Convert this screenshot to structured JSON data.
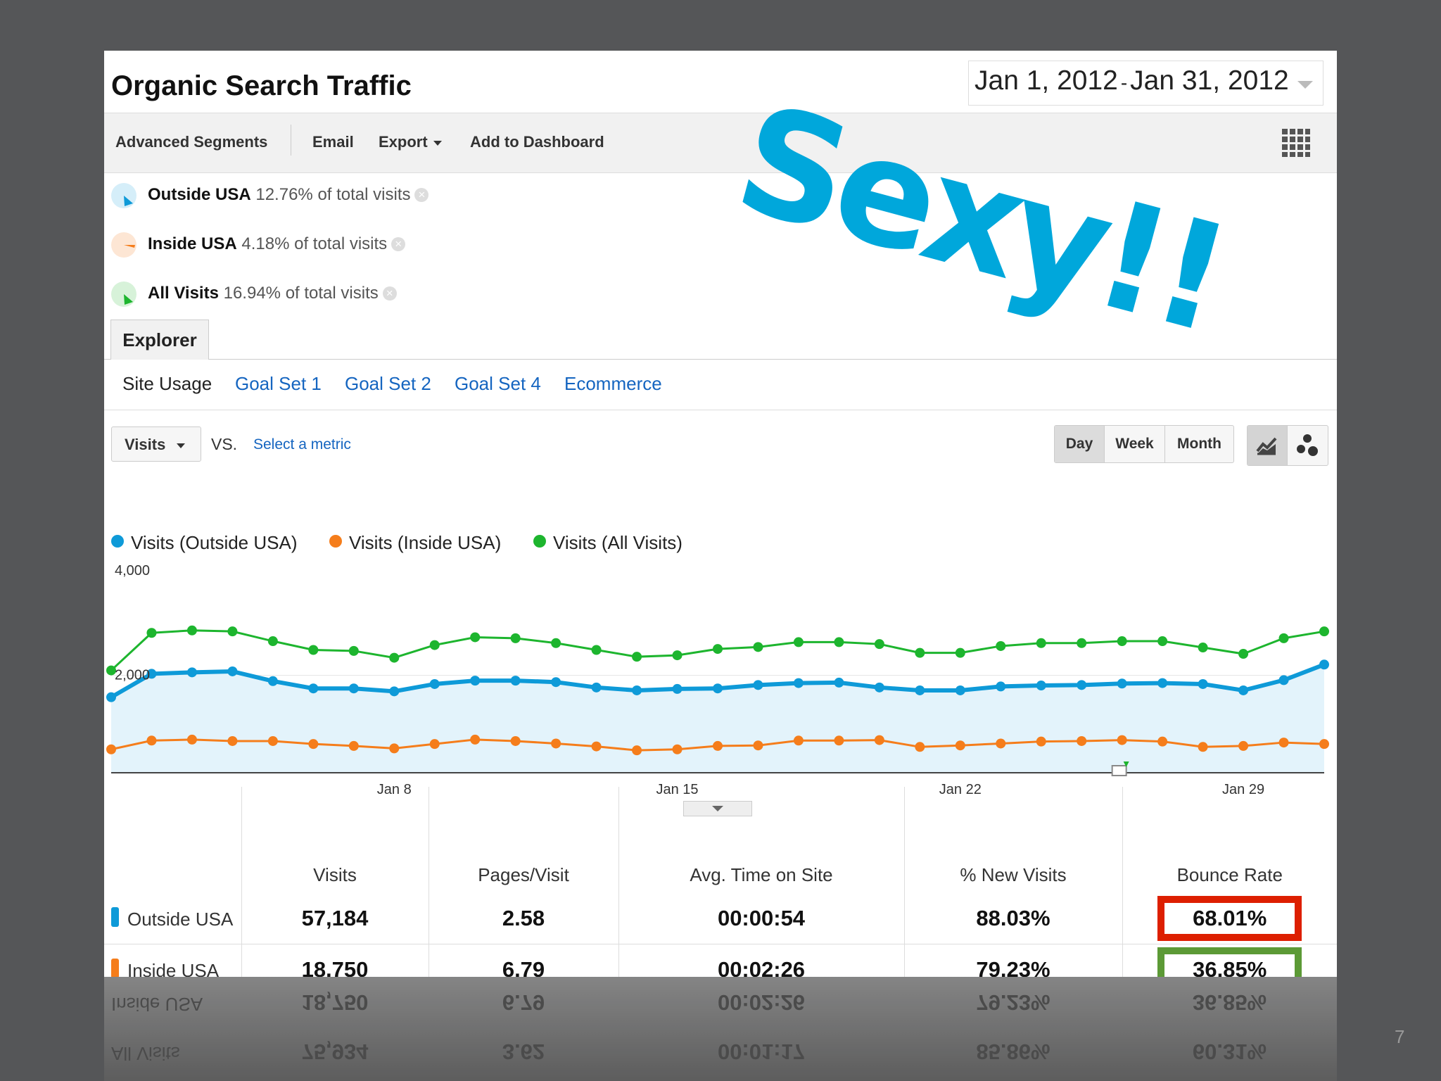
{
  "title": "Organic Search Traffic",
  "date_range": {
    "start": "Jan 1, 2012",
    "separator": "-",
    "end": "Jan 31, 2012"
  },
  "toolbar": {
    "advanced_segments": "Advanced Segments",
    "email": "Email",
    "export": "Export",
    "add_to_dashboard": "Add to Dashboard"
  },
  "segments": [
    {
      "name": "Outside USA",
      "pct": "12.76%",
      "suffix": "of total visits",
      "color": "#0e9ad8",
      "light": "#d5eef9"
    },
    {
      "name": "Inside USA",
      "pct": "4.18%",
      "suffix": "of total visits",
      "color": "#f57d1b",
      "light": "#fde6d4"
    },
    {
      "name": "All Visits",
      "pct": "16.94%",
      "suffix": "of total visits",
      "color": "#1db52e",
      "light": "#d7f2d9"
    }
  ],
  "overlay_text": "Sexy!!",
  "explorer_tab": "Explorer",
  "subtabs": [
    "Site Usage",
    "Goal Set 1",
    "Goal Set 2",
    "Goal Set 4",
    "Ecommerce"
  ],
  "metric": {
    "selected": "Visits",
    "vs": "VS.",
    "select_label": "Select a metric"
  },
  "periods": [
    "Day",
    "Week",
    "Month"
  ],
  "legend": [
    {
      "label": "Visits (Outside USA)",
      "color": "#0e9ad8"
    },
    {
      "label": "Visits (Inside USA)",
      "color": "#f57d1b"
    },
    {
      "label": "Visits (All Visits)",
      "color": "#1db52e"
    }
  ],
  "chart_data": {
    "type": "line",
    "x": [
      "Jan 1",
      "Jan 2",
      "Jan 3",
      "Jan 4",
      "Jan 5",
      "Jan 6",
      "Jan 7",
      "Jan 8",
      "Jan 9",
      "Jan 10",
      "Jan 11",
      "Jan 12",
      "Jan 13",
      "Jan 14",
      "Jan 15",
      "Jan 16",
      "Jan 17",
      "Jan 18",
      "Jan 19",
      "Jan 20",
      "Jan 21",
      "Jan 22",
      "Jan 23",
      "Jan 24",
      "Jan 25",
      "Jan 26",
      "Jan 27",
      "Jan 28",
      "Jan 29",
      "Jan 30",
      "Jan 31"
    ],
    "x_tick_labels": [
      "Jan 8",
      "Jan 15",
      "Jan 22",
      "Jan 29"
    ],
    "y_tick_labels": [
      "4,000",
      "2,000"
    ],
    "ylim": [
      0,
      4000
    ],
    "series": [
      {
        "name": "Visits (All Visits)",
        "color": "#1db52e",
        "values": [
          2100,
          2870,
          2920,
          2900,
          2700,
          2520,
          2500,
          2360,
          2620,
          2780,
          2760,
          2660,
          2520,
          2380,
          2410,
          2540,
          2580,
          2680,
          2680,
          2640,
          2460,
          2460,
          2600,
          2660,
          2660,
          2700,
          2700,
          2570,
          2440,
          2760,
          2900
        ]
      },
      {
        "name": "Visits (Outside USA)",
        "color": "#0e9ad8",
        "values": [
          1550,
          2030,
          2060,
          2080,
          1880,
          1730,
          1730,
          1670,
          1820,
          1890,
          1890,
          1860,
          1750,
          1690,
          1720,
          1730,
          1800,
          1840,
          1850,
          1750,
          1690,
          1690,
          1770,
          1790,
          1800,
          1830,
          1840,
          1820,
          1690,
          1900,
          2220
        ]
      },
      {
        "name": "Visits (Inside USA)",
        "color": "#f57d1b",
        "values": [
          480,
          660,
          680,
          650,
          650,
          590,
          550,
          500,
          590,
          680,
          650,
          600,
          540,
          460,
          480,
          550,
          560,
          660,
          660,
          670,
          530,
          560,
          600,
          640,
          650,
          670,
          640,
          530,
          550,
          620,
          590
        ]
      }
    ]
  },
  "table": {
    "columns": [
      "Visits",
      "Pages/Visit",
      "Avg. Time on Site",
      "% New Visits",
      "Bounce Rate"
    ],
    "rows": [
      {
        "label": "Outside USA",
        "color": "#0e9ad8",
        "values": [
          "57,184",
          "2.58",
          "00:00:54",
          "88.03%",
          "68.01%"
        ]
      },
      {
        "label": "Inside USA",
        "color": "#f57d1b",
        "values": [
          "18,750",
          "6.79",
          "00:02:26",
          "79.23%",
          "36.85%"
        ]
      },
      {
        "label": "All Visits",
        "color": "#1db52e",
        "values": [
          "75,934",
          "3.62",
          "00:01:17",
          "85.86%",
          "60.31%"
        ]
      }
    ]
  },
  "page_number": "7"
}
